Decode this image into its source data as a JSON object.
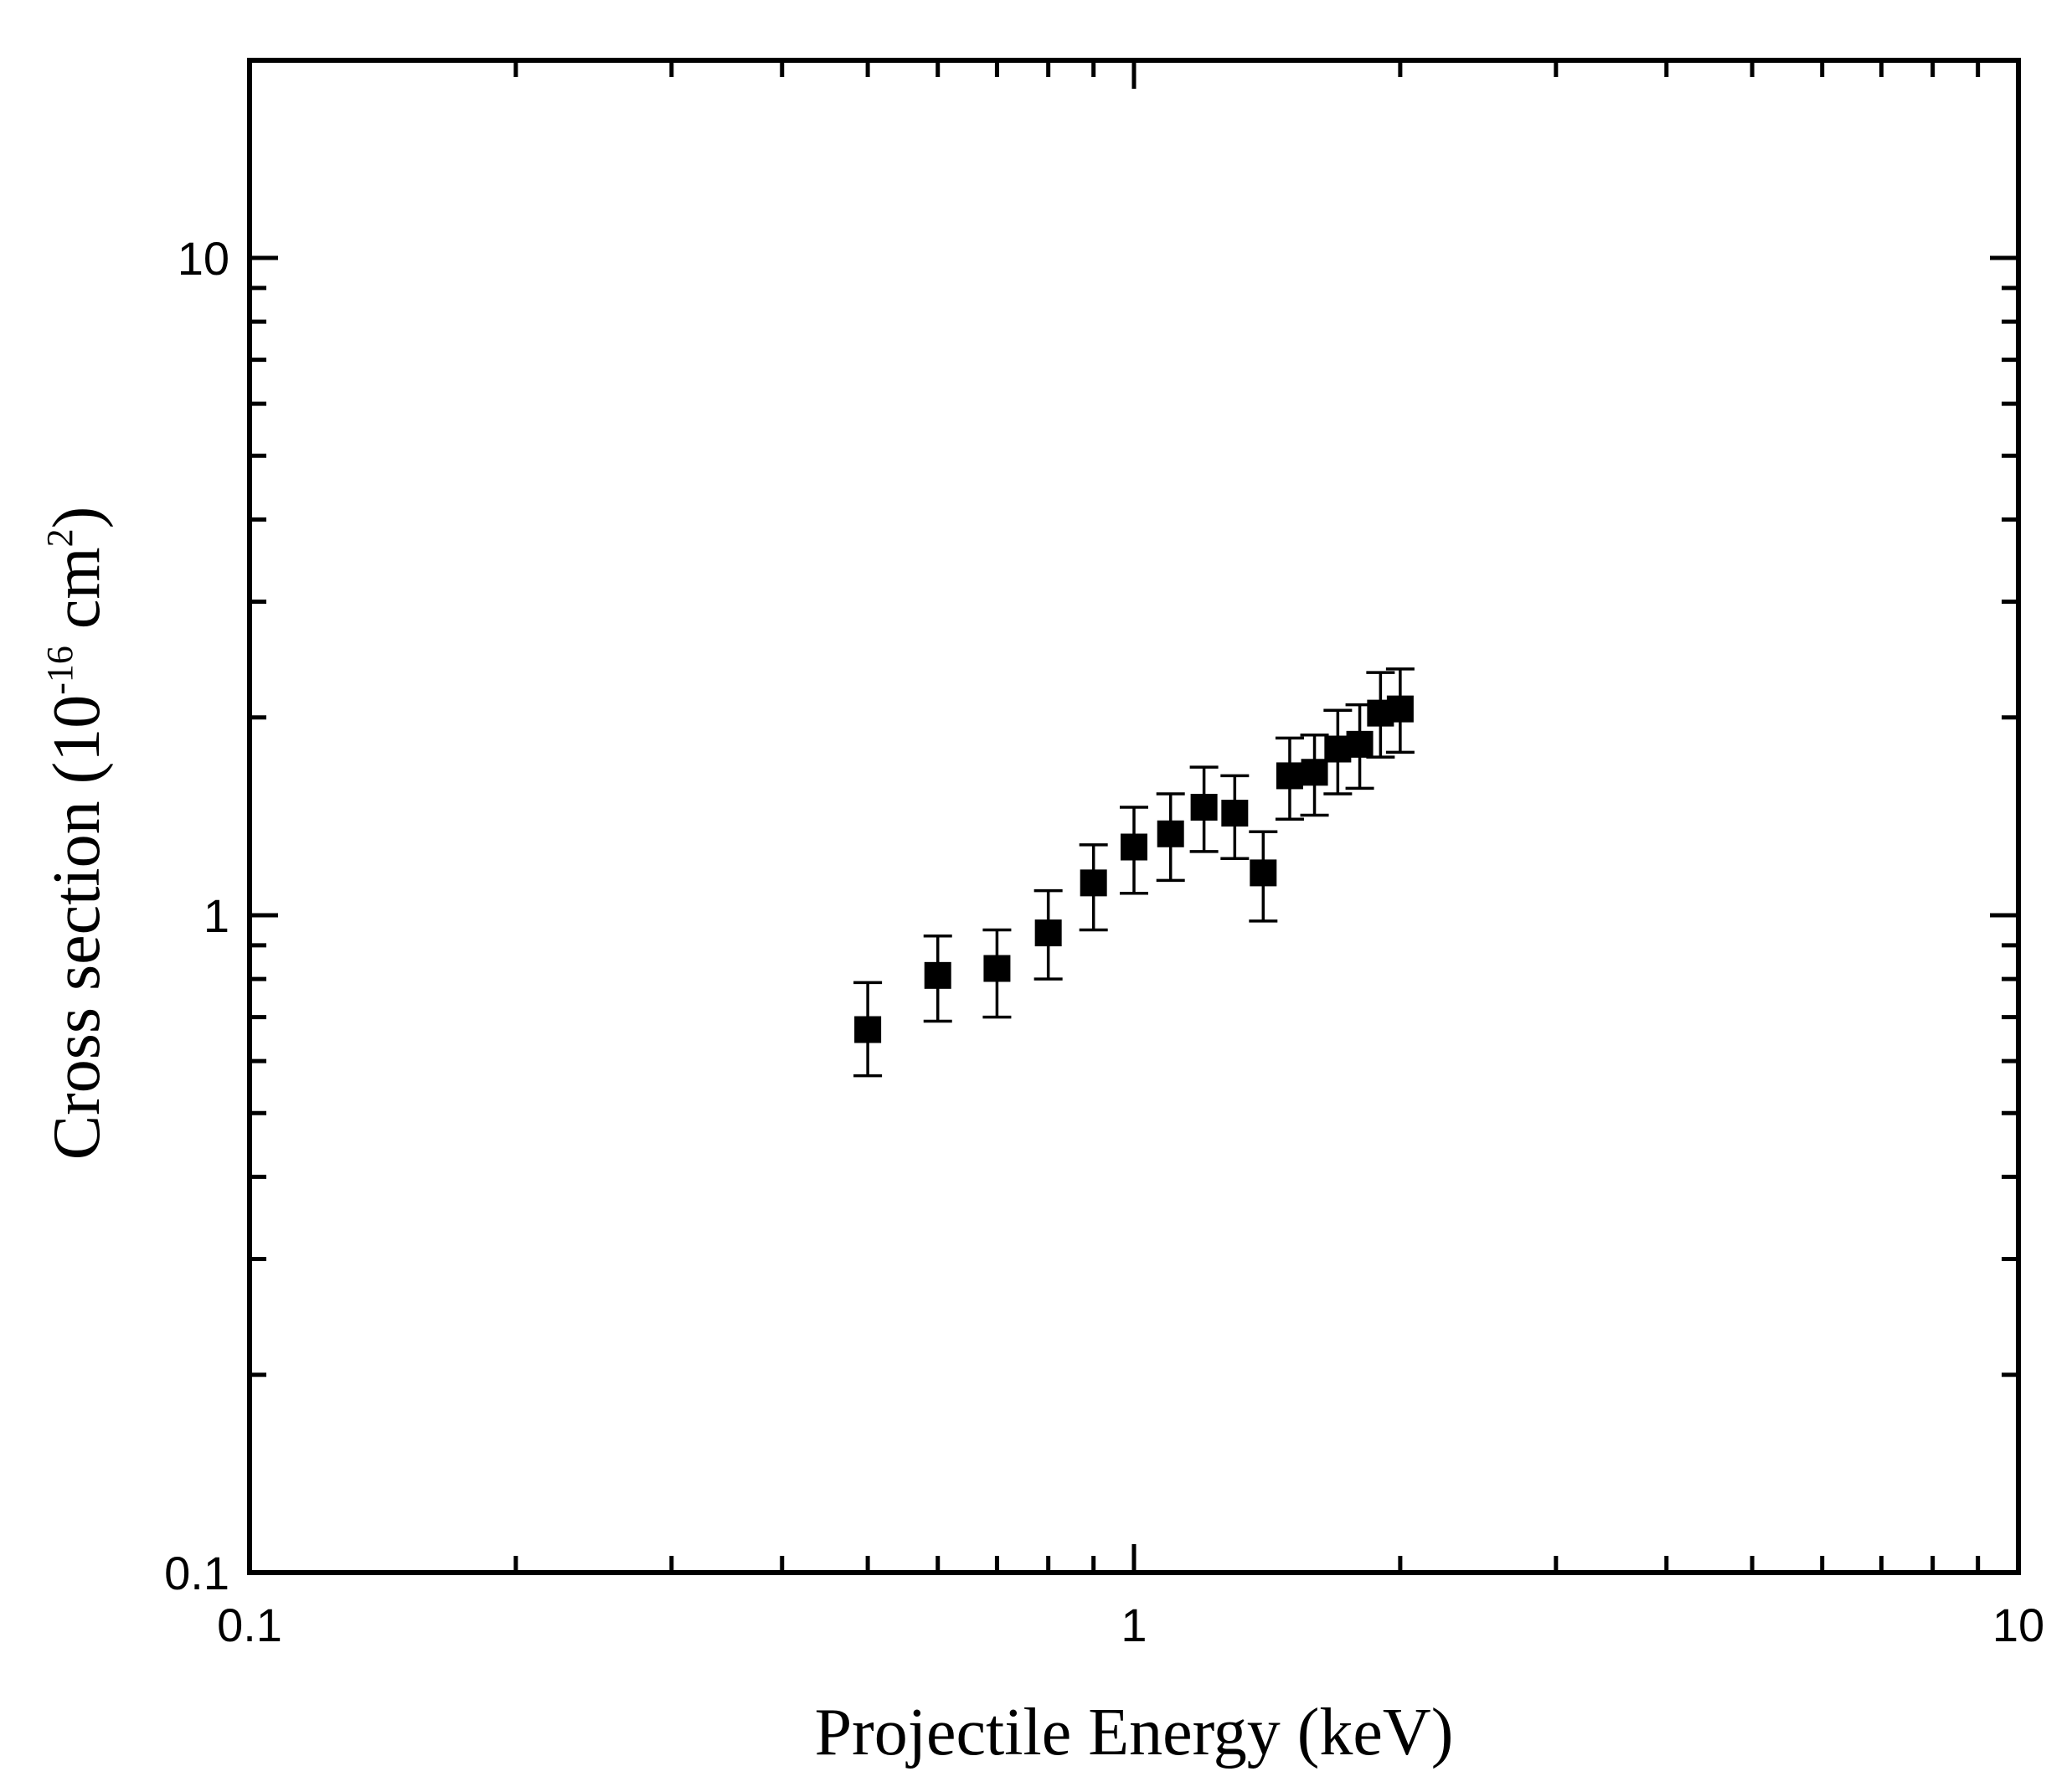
{
  "chart_data": {
    "type": "scatter",
    "title": "",
    "xlabel": "Projectile Energy (keV)",
    "ylabel": {
      "prefix": "Cross section (10",
      "exponent": "-16",
      "unit_main": " cm",
      "unit_exponent": "2",
      "suffix": ")"
    },
    "x_scale": "log",
    "y_scale": "log",
    "xlim": [
      0.1,
      10
    ],
    "ylim": [
      0.1,
      20
    ],
    "x_ticks": [
      {
        "value": 0.1,
        "label": "0.1"
      },
      {
        "value": 1,
        "label": "1"
      },
      {
        "value": 10,
        "label": "10"
      }
    ],
    "y_ticks": [
      {
        "value": 0.1,
        "label": "0.1"
      },
      {
        "value": 1,
        "label": "1"
      },
      {
        "value": 10,
        "label": "10"
      }
    ],
    "grid": false,
    "legend": "none",
    "marker": "filled-square",
    "color": "#000000",
    "series": [
      {
        "name": "cross-section",
        "points": [
          {
            "x": 0.5,
            "y": 0.67,
            "y_low": 0.57,
            "y_high": 0.79
          },
          {
            "x": 0.6,
            "y": 0.81,
            "y_low": 0.69,
            "y_high": 0.93
          },
          {
            "x": 0.7,
            "y": 0.83,
            "y_low": 0.7,
            "y_high": 0.95
          },
          {
            "x": 0.8,
            "y": 0.94,
            "y_low": 0.8,
            "y_high": 1.09
          },
          {
            "x": 0.9,
            "y": 1.12,
            "y_low": 0.95,
            "y_high": 1.28
          },
          {
            "x": 1.0,
            "y": 1.27,
            "y_low": 1.08,
            "y_high": 1.46
          },
          {
            "x": 1.1,
            "y": 1.33,
            "y_low": 1.13,
            "y_high": 1.53
          },
          {
            "x": 1.2,
            "y": 1.46,
            "y_low": 1.25,
            "y_high": 1.68
          },
          {
            "x": 1.3,
            "y": 1.43,
            "y_low": 1.22,
            "y_high": 1.63
          },
          {
            "x": 1.4,
            "y": 1.16,
            "y_low": 0.98,
            "y_high": 1.34
          },
          {
            "x": 1.5,
            "y": 1.63,
            "y_low": 1.4,
            "y_high": 1.86
          },
          {
            "x": 1.6,
            "y": 1.65,
            "y_low": 1.42,
            "y_high": 1.88
          },
          {
            "x": 1.7,
            "y": 1.79,
            "y_low": 1.53,
            "y_high": 2.05
          },
          {
            "x": 1.8,
            "y": 1.82,
            "y_low": 1.56,
            "y_high": 2.09
          },
          {
            "x": 1.9,
            "y": 2.03,
            "y_low": 1.74,
            "y_high": 2.34
          },
          {
            "x": 2.0,
            "y": 2.06,
            "y_low": 1.77,
            "y_high": 2.37
          }
        ]
      }
    ]
  }
}
